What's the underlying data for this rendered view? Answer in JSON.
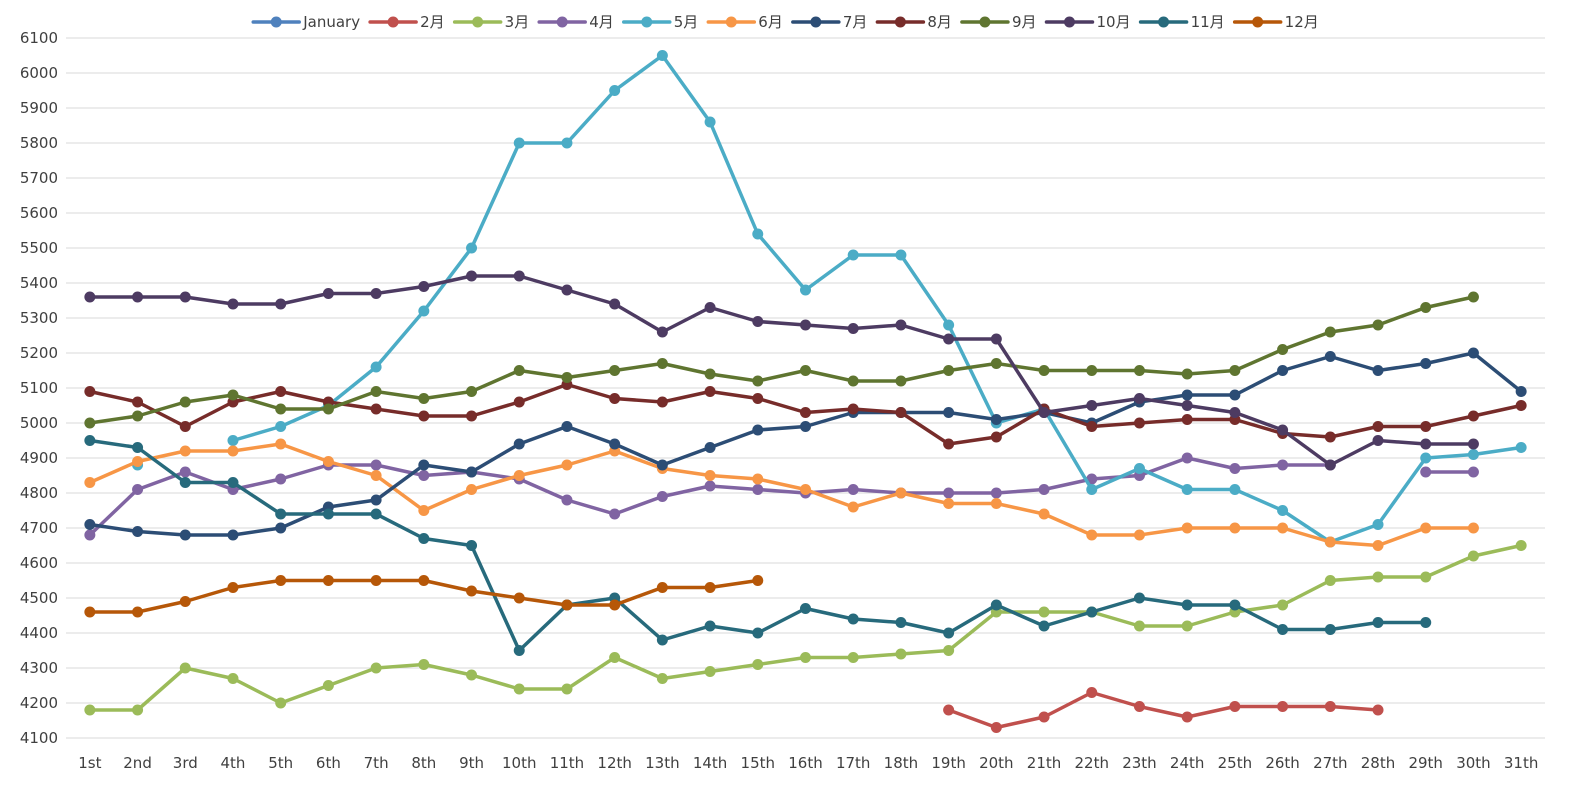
{
  "chart_data": {
    "type": "line",
    "title": "",
    "xlabel": "",
    "ylabel": "",
    "ylim": [
      4100,
      6100
    ],
    "ytick_step": 100,
    "grid": "horizontal",
    "legend": "top-center",
    "categories": [
      "1st",
      "2nd",
      "3rd",
      "4th",
      "5th",
      "6th",
      "7th",
      "8th",
      "9th",
      "10th",
      "11th",
      "12th",
      "13th",
      "14th",
      "15th",
      "16th",
      "17th",
      "18th",
      "19th",
      "20th",
      "21th",
      "22th",
      "23th",
      "24th",
      "25th",
      "26th",
      "27th",
      "28th",
      "29th",
      "30th",
      "31th"
    ],
    "series": [
      {
        "name": "January",
        "color": "#4f81bd",
        "values": [
          null,
          null,
          null,
          null,
          null,
          null,
          null,
          null,
          null,
          null,
          null,
          null,
          null,
          null,
          null,
          null,
          null,
          null,
          null,
          null,
          null,
          null,
          null,
          null,
          null,
          null,
          null,
          null,
          null,
          null,
          null
        ]
      },
      {
        "name": "2月",
        "color": "#c0504d",
        "values": [
          null,
          null,
          null,
          null,
          null,
          null,
          null,
          null,
          null,
          null,
          null,
          null,
          null,
          null,
          null,
          null,
          null,
          null,
          4180,
          4130,
          4160,
          4230,
          4190,
          4160,
          4190,
          4190,
          4190,
          4180,
          null,
          null,
          null
        ]
      },
      {
        "name": "3月",
        "color": "#9bbb59",
        "values": [
          4180,
          4180,
          4300,
          4270,
          4200,
          4250,
          4300,
          4310,
          4280,
          4240,
          4240,
          4330,
          4270,
          4290,
          4310,
          4330,
          4330,
          4340,
          4350,
          4460,
          4460,
          4460,
          4420,
          4420,
          4460,
          4480,
          4550,
          4560,
          4560,
          4620,
          4650
        ]
      },
      {
        "name": "4月",
        "color": "#8064a2",
        "values": [
          4680,
          4810,
          4860,
          4810,
          4840,
          4880,
          4880,
          4850,
          4860,
          4840,
          4780,
          4740,
          4790,
          4820,
          4810,
          4800,
          4810,
          4800,
          4800,
          4800,
          4810,
          4840,
          4850,
          4900,
          4870,
          4880,
          4880,
          null,
          4860,
          4860,
          null
        ]
      },
      {
        "name": "5月",
        "color": "#4bacc6",
        "values": [
          null,
          4880,
          null,
          4950,
          4990,
          5050,
          5160,
          5320,
          5500,
          5800,
          5800,
          5950,
          6050,
          5860,
          5540,
          5380,
          5480,
          5480,
          5280,
          5000,
          5040,
          4810,
          4870,
          4810,
          4810,
          4750,
          4660,
          4710,
          4900,
          4910,
          4930
        ]
      },
      {
        "name": "6月",
        "color": "#f79646",
        "values": [
          4830,
          4890,
          4920,
          4920,
          4940,
          4890,
          4850,
          4750,
          4810,
          4850,
          4880,
          4920,
          4870,
          4850,
          4840,
          4810,
          4760,
          4800,
          4770,
          4770,
          4740,
          4680,
          4680,
          4700,
          4700,
          4700,
          4660,
          4650,
          4700,
          4700,
          null
        ]
      },
      {
        "name": "7月",
        "color": "#2c4d75",
        "values": [
          4710,
          4690,
          4680,
          4680,
          4700,
          4760,
          4780,
          4880,
          4860,
          4940,
          4990,
          4940,
          4880,
          4930,
          4980,
          4990,
          5030,
          5030,
          5030,
          5010,
          5030,
          5000,
          5060,
          5080,
          5080,
          5150,
          5190,
          5150,
          5170,
          5200,
          5090
        ]
      },
      {
        "name": "8月",
        "color": "#772c2a",
        "values": [
          5090,
          5060,
          4990,
          5060,
          5090,
          5060,
          5040,
          5020,
          5020,
          5060,
          5110,
          5070,
          5060,
          5090,
          5070,
          5030,
          5040,
          5030,
          4940,
          4960,
          5040,
          4990,
          5000,
          5010,
          5010,
          4970,
          4960,
          4990,
          4990,
          5020,
          5050
        ]
      },
      {
        "name": "9月",
        "color": "#5f7530",
        "values": [
          5000,
          5020,
          5060,
          5080,
          5040,
          5040,
          5090,
          5070,
          5090,
          5150,
          5130,
          5150,
          5170,
          5140,
          5120,
          5150,
          5120,
          5120,
          5150,
          5170,
          5150,
          5150,
          5150,
          5140,
          5150,
          5210,
          5260,
          5280,
          5330,
          5360,
          null
        ]
      },
      {
        "name": "10月",
        "color": "#4d3b62",
        "values": [
          5360,
          5360,
          5360,
          5340,
          5340,
          5370,
          5370,
          5390,
          5420,
          5420,
          5380,
          5340,
          5260,
          5330,
          5290,
          5280,
          5270,
          5280,
          5240,
          5240,
          5030,
          5050,
          5070,
          5050,
          5030,
          4980,
          4880,
          4950,
          4940,
          4940,
          null
        ]
      },
      {
        "name": "11月",
        "color": "#276a7c",
        "values": [
          4950,
          4930,
          4830,
          4830,
          4740,
          4740,
          4740,
          4670,
          4650,
          4350,
          4480,
          4500,
          4380,
          4420,
          4400,
          4470,
          4440,
          4430,
          4400,
          4480,
          4420,
          4460,
          4500,
          4480,
          4480,
          4410,
          4410,
          4430,
          4430,
          null,
          null
        ]
      },
      {
        "name": "12月",
        "color": "#b65708",
        "values": [
          4460,
          4460,
          4490,
          4530,
          4550,
          4550,
          4550,
          4550,
          4520,
          4500,
          4480,
          4480,
          4530,
          4530,
          4550,
          null,
          null,
          null,
          null,
          null,
          null,
          null,
          null,
          null,
          null,
          null,
          null,
          null,
          null,
          null,
          null
        ]
      }
    ]
  }
}
